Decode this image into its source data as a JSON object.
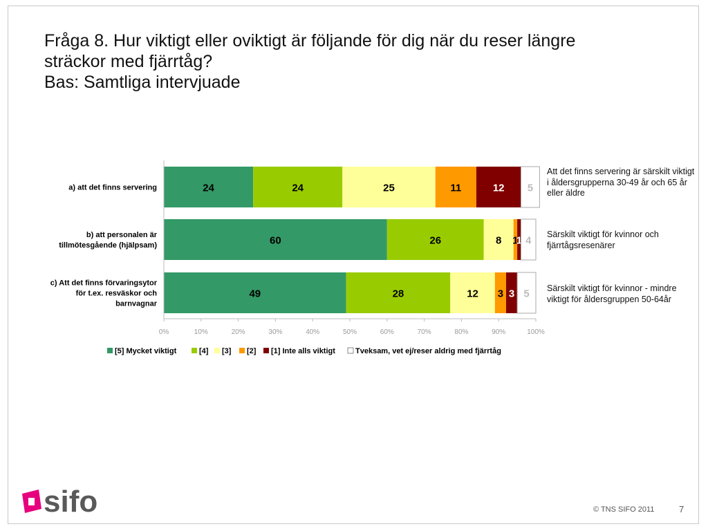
{
  "page": {
    "title_lines": [
      "Fråga 8. Hur viktigt eller oviktigt är följande för dig när du reser längre",
      "sträckor med fjärrtåg?",
      "Bas: Samtliga intervjuade"
    ],
    "footer": "© TNS SIFO 2011",
    "page_number": "7",
    "logo_text": "sifo"
  },
  "notes": [
    "Att det finns servering är särskilt viktigt i åldersgrupperna 30-49 år och 65 år eller äldre",
    "Särskilt viktigt för kvinnor och fjärrtågsresenärer",
    "Särskilt viktigt för kvinnor  - mindre viktigt för åldersgruppen 50-64år"
  ],
  "chart_data": {
    "type": "bar",
    "orientation": "horizontal",
    "stacked": true,
    "title": "",
    "xlabel": "",
    "ylabel": "",
    "xlim": [
      0,
      100
    ],
    "x_ticks": [
      "0%",
      "10%",
      "20%",
      "30%",
      "40%",
      "50%",
      "60%",
      "70%",
      "80%",
      "90%",
      "100%"
    ],
    "grid": false,
    "legend_position": "bottom",
    "categories": [
      [
        "a) att det finns servering"
      ],
      [
        "b) att personalen är",
        "tillmötesgående (hjälpsam)"
      ],
      [
        "c) Att det finns förvaringsytor",
        "för t.ex. resväskor och",
        "barnvagnar"
      ]
    ],
    "series": [
      {
        "name": "[5] Mycket viktigt",
        "color": "#339966",
        "label_color": "#000000",
        "values": [
          24,
          60,
          49
        ]
      },
      {
        "name": "[4]",
        "color": "#99cc00",
        "label_color": "#000000",
        "values": [
          24,
          26,
          28
        ]
      },
      {
        "name": "[3]",
        "color": "#ffff99",
        "label_color": "#000000",
        "values": [
          25,
          8,
          12
        ]
      },
      {
        "name": "[2]",
        "color": "#ff9900",
        "label_color": "#000000",
        "values": [
          11,
          1,
          3
        ]
      },
      {
        "name": "[1] Inte alls viktigt",
        "color": "#800000",
        "label_color": "#ffffff",
        "values": [
          12,
          1,
          3
        ]
      },
      {
        "name": "Tveksam, vet ej/reser aldrig med fjärrtåg",
        "color": "#ffffff",
        "label_color": "#bbbbbb",
        "values": [
          5,
          4,
          5
        ]
      }
    ]
  }
}
